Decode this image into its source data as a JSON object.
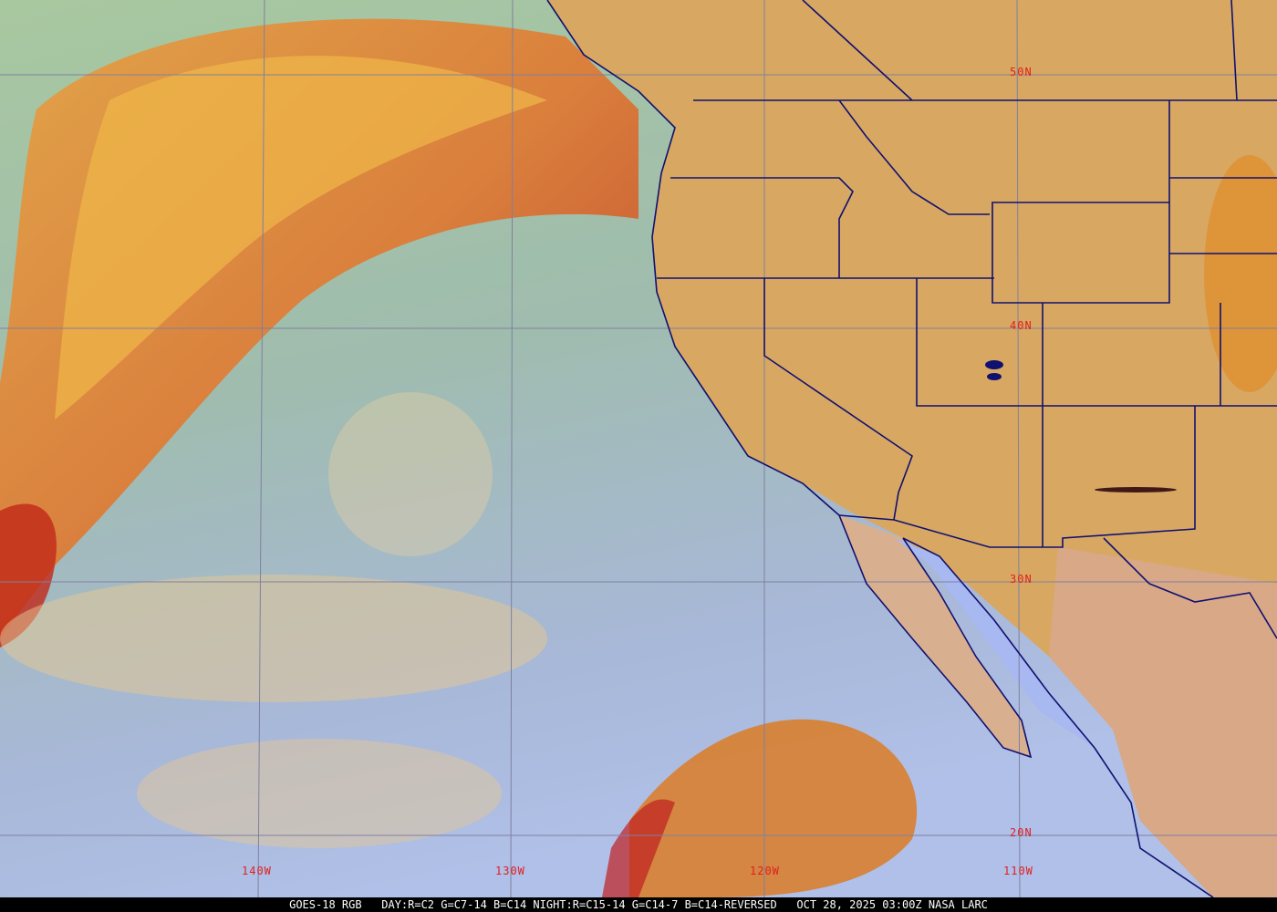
{
  "caption": "GOES-18 RGB   DAY:R=C2 G=C7-14 B=C14 NIGHT:R=C15-14 G=C14-7 B=C14-REVERSED   OCT 28, 2025 03:00Z NASA LARC",
  "latitude_labels": [
    "50N",
    "40N",
    "30N",
    "20N"
  ],
  "longitude_labels": [
    "140W",
    "130W",
    "120W",
    "110W"
  ],
  "colors": {
    "grid": "#8080a0",
    "borders": "#101070",
    "labels": "#e02020",
    "ocean": "#9fb8b0",
    "land": "#d8a860",
    "cloud_band": "#e07830"
  }
}
